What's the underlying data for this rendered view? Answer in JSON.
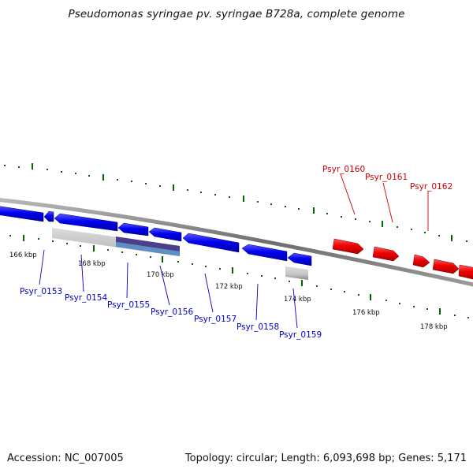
{
  "title": "Pseudomonas syringae pv. syringae B728a, complete genome",
  "footer": {
    "accession": "Accession: NC_007005",
    "stats": "Topology: circular; Length: 6,093,698 bp; Genes: 5,171"
  },
  "colors": {
    "forward_strand": "#ff0000",
    "reverse_strand": "#0000ff",
    "backbone": "#808080",
    "tick_marks": "#006600",
    "feature_bars": "#c0c0c0",
    "overlay_bar": "#4b3f8c"
  },
  "ticks": [
    "166 kbp",
    "168 kbp",
    "170 kbp",
    "172 kbp",
    "174 kbp",
    "176 kbp",
    "178 kbp"
  ],
  "genes": {
    "reverse": [
      "Psyr_0153",
      "Psyr_0154",
      "Psyr_0155",
      "Psyr_0156",
      "Psyr_0157",
      "Psyr_0158",
      "Psyr_0159"
    ],
    "forward": [
      "Psyr_0160",
      "Psyr_0161",
      "Psyr_0162"
    ]
  }
}
